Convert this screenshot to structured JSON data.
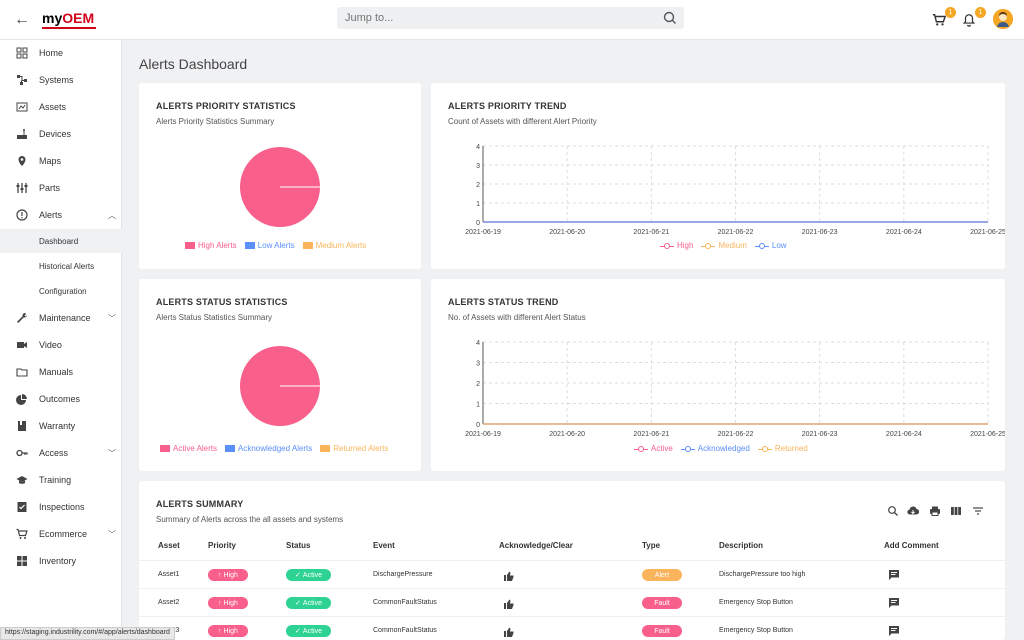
{
  "app": {
    "logo_prefix": "my",
    "logo_suffix": "OEM",
    "search_placeholder": "Jump to...",
    "cart_count": "1",
    "notif_count": "1"
  },
  "sidebar": {
    "items": [
      {
        "label": "Home",
        "icon": "dashboard-icon"
      },
      {
        "label": "Systems",
        "icon": "systems-icon"
      },
      {
        "label": "Assets",
        "icon": "assets-icon"
      },
      {
        "label": "Devices",
        "icon": "devices-icon"
      },
      {
        "label": "Maps",
        "icon": "map-pin-icon"
      },
      {
        "label": "Parts",
        "icon": "parts-icon"
      },
      {
        "label": "Alerts",
        "icon": "alert-icon"
      },
      {
        "label": "Maintenance",
        "icon": "wrench-icon"
      },
      {
        "label": "Video",
        "icon": "video-icon"
      },
      {
        "label": "Manuals",
        "icon": "folder-icon"
      },
      {
        "label": "Outcomes",
        "icon": "pie-icon"
      },
      {
        "label": "Warranty",
        "icon": "book-icon"
      },
      {
        "label": "Access",
        "icon": "key-icon"
      },
      {
        "label": "Training",
        "icon": "graduation-icon"
      },
      {
        "label": "Inspections",
        "icon": "checklist-icon"
      },
      {
        "label": "Ecommerce",
        "icon": "cart-icon"
      },
      {
        "label": "Inventory",
        "icon": "grid-icon"
      }
    ],
    "alerts_sub": [
      "Dashboard",
      "Historical Alerts",
      "Configuration"
    ]
  },
  "page": {
    "title": "Alerts Dashboard"
  },
  "priority_stats": {
    "title": "ALERTS PRIORITY STATISTICS",
    "subtitle": "Alerts Priority Statistics Summary",
    "legend": [
      "High Alerts",
      "Low Alerts",
      "Medium Alerts"
    ]
  },
  "priority_trend": {
    "title": "ALERTS PRIORITY TREND",
    "subtitle": "Count of Assets with different Alert Priority",
    "legend": [
      "High",
      "Medium",
      "Low"
    ]
  },
  "status_stats": {
    "title": "ALERTS STATUS STATISTICS",
    "subtitle": "Alerts Status Statistics Summary",
    "legend": [
      "Active Alerts",
      "Acknowledged Alerts",
      "Returned Alerts"
    ]
  },
  "status_trend": {
    "title": "ALERTS STATUS TREND",
    "subtitle": "No. of Assets with different Alert Status",
    "legend": [
      "Active",
      "Acknowledged",
      "Returned"
    ]
  },
  "chart_data": [
    {
      "type": "pie",
      "title": "ALERTS PRIORITY STATISTICS",
      "categories": [
        "High Alerts",
        "Low Alerts",
        "Medium Alerts"
      ],
      "values": [
        100,
        0,
        0
      ],
      "colors": [
        "#f8608b",
        "#5b8ff9",
        "#f9b45c"
      ],
      "legend": "bottom"
    },
    {
      "type": "line",
      "title": "ALERTS PRIORITY TREND",
      "x": [
        "2021-06-19",
        "2021-06-20",
        "2021-06-21",
        "2021-06-22",
        "2021-06-23",
        "2021-06-24",
        "2021-06-25"
      ],
      "yticks": [
        "0",
        "1",
        "2",
        "3",
        "4"
      ],
      "ylim": [
        0,
        4
      ],
      "series": [
        {
          "name": "High",
          "values": [
            0,
            0,
            0,
            0,
            0,
            0,
            0
          ],
          "color": "#f8608b"
        },
        {
          "name": "Medium",
          "values": [
            0,
            0,
            0,
            0,
            0,
            0,
            0
          ],
          "color": "#f9b45c"
        },
        {
          "name": "Low",
          "values": [
            0,
            0,
            0,
            0,
            0,
            0,
            0
          ],
          "color": "#5b8ff9"
        }
      ],
      "grid": true,
      "legend": "bottom"
    },
    {
      "type": "pie",
      "title": "ALERTS STATUS STATISTICS",
      "categories": [
        "Active Alerts",
        "Acknowledged Alerts",
        "Returned Alerts"
      ],
      "values": [
        100,
        0,
        0
      ],
      "colors": [
        "#f8608b",
        "#5b8ff9",
        "#f9b45c"
      ],
      "legend": "bottom"
    },
    {
      "type": "line",
      "title": "ALERTS STATUS TREND",
      "x": [
        "2021-06-19",
        "2021-06-20",
        "2021-06-21",
        "2021-06-22",
        "2021-06-23",
        "2021-06-24",
        "2021-06-25"
      ],
      "yticks": [
        "0",
        "1",
        "2",
        "3",
        "4"
      ],
      "ylim": [
        0,
        4
      ],
      "series": [
        {
          "name": "Active",
          "values": [
            0,
            0,
            0,
            0,
            0,
            0,
            0
          ],
          "color": "#f8608b"
        },
        {
          "name": "Acknowledged",
          "values": [
            0,
            0,
            0,
            0,
            0,
            0,
            0
          ],
          "color": "#5b8ff9"
        },
        {
          "name": "Returned",
          "values": [
            0,
            0,
            0,
            0,
            0,
            0,
            0
          ],
          "color": "#f9b45c"
        }
      ],
      "grid": true,
      "legend": "bottom"
    }
  ],
  "summary": {
    "title": "ALERTS SUMMARY",
    "subtitle": "Summary of Alerts across the all assets and systems",
    "columns": [
      "Asset",
      "Priority",
      "Status",
      "Event",
      "Acknowledge/Clear",
      "Type",
      "Description",
      "Add Comment"
    ],
    "rows": [
      {
        "asset": "Asset1",
        "priority": "High",
        "status": "Active",
        "event": "DischargePressure",
        "type": "Alert",
        "description": "DischargePressure too high"
      },
      {
        "asset": "Asset2",
        "priority": "High",
        "status": "Active",
        "event": "CommonFaultStatus",
        "type": "Fault",
        "description": "Emergency Stop Button"
      },
      {
        "asset": "Asset3",
        "priority": "High",
        "status": "Active",
        "event": "CommonFaultStatus",
        "type": "Fault",
        "description": "Emergency Stop Button"
      }
    ]
  },
  "colors": {
    "high": "#f8608b",
    "active": "#2ed394",
    "alert": "#f9b45c",
    "fault": "#f8608b"
  },
  "statusbar": {
    "url": "https://staging.industrility.com/#/app/alerts/dashboard"
  }
}
